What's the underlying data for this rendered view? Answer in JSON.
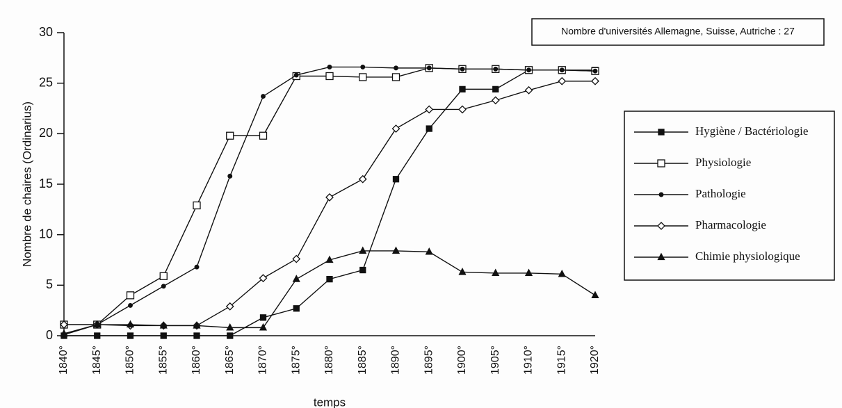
{
  "chart_data": {
    "type": "line",
    "annotation": "Nombre d'universités Allemagne, Suisse, Autriche : 27",
    "y_label": "Nombre de chaires (Ordinarius)",
    "x_label": "temps",
    "categories": [
      "1840°",
      "1845°",
      "1850°",
      "1855°",
      "1860°",
      "1865°",
      "1870°",
      "1875°",
      "1880°",
      "1885°",
      "1890°",
      "1895°",
      "1900°",
      "1905°",
      "1910°",
      "1915°",
      "1920°"
    ],
    "series": [
      {
        "name": "Hygiène / Bactériologie",
        "color": "#111111",
        "marker": "square-filled",
        "values": [
          0,
          0,
          0,
          0,
          0,
          0,
          1.8,
          2.7,
          5.6,
          6.5,
          15.5,
          20.5,
          24.4,
          24.4,
          26.3,
          26.3,
          26.3
        ]
      },
      {
        "name": "Physiologie",
        "color": "#111111",
        "marker": "square-open",
        "values": [
          1.1,
          1.1,
          4,
          5.9,
          12.9,
          19.8,
          19.8,
          25.7,
          25.7,
          25.6,
          25.6,
          26.5,
          26.4,
          26.4,
          26.3,
          26.3,
          26.2
        ]
      },
      {
        "name": "Pathologie",
        "color": "#111111",
        "marker": "dot",
        "values": [
          0.1,
          1.1,
          3,
          4.9,
          6.8,
          15.8,
          23.7,
          25.8,
          26.6,
          26.6,
          26.5,
          26.5,
          26.4,
          26.4,
          26.3,
          26.3,
          26.2
        ]
      },
      {
        "name": "Pharmacologie",
        "color": "#111111",
        "marker": "diamond-open",
        "values": [
          1.1,
          1.1,
          1.0,
          1.0,
          1.0,
          2.9,
          5.7,
          7.6,
          13.7,
          15.5,
          20.5,
          22.4,
          22.4,
          23.3,
          24.3,
          25.2,
          25.2
        ]
      },
      {
        "name": "Chimie physiologique",
        "color": "#111111",
        "marker": "triangle-filled",
        "values": [
          0.2,
          1.1,
          1.1,
          1.0,
          1.0,
          0.8,
          0.8,
          5.6,
          7.5,
          8.4,
          8.4,
          8.3,
          6.3,
          6.2,
          6.2,
          6.1,
          4.0
        ]
      }
    ],
    "ylim": [
      0,
      30
    ],
    "yticks": [
      0,
      5,
      10,
      15,
      20,
      25,
      30
    ],
    "grid": false
  }
}
